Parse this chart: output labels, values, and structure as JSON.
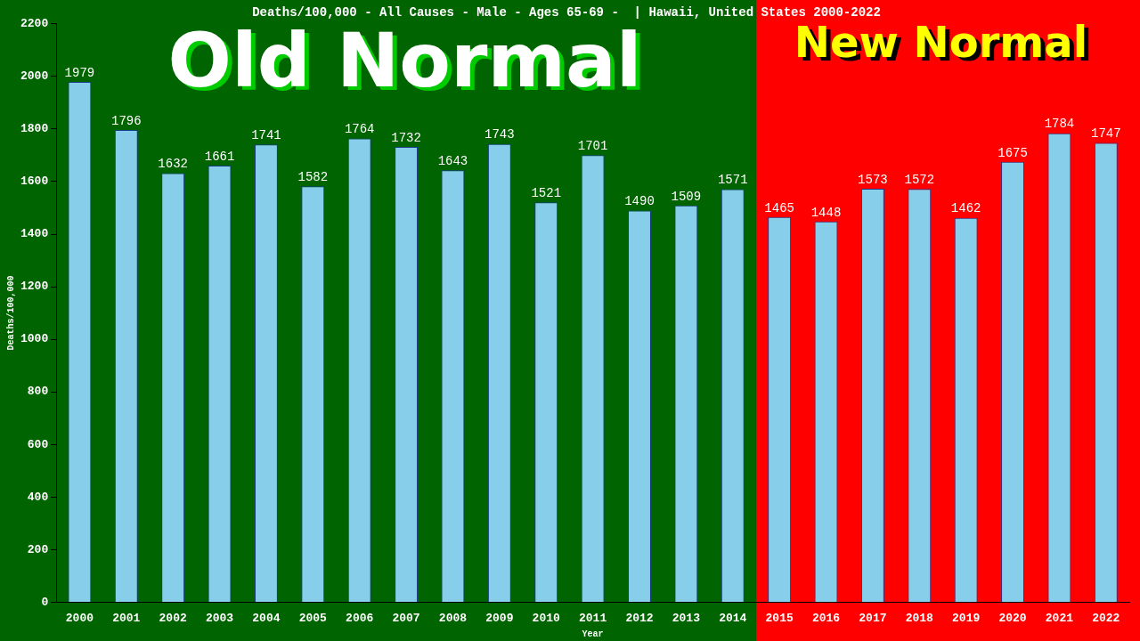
{
  "chart_data": {
    "type": "bar",
    "title": "Deaths/100,000 - All Causes - Male - Ages 65-69 -  | Hawaii, United States 2000-2022",
    "xlabel": "Year",
    "ylabel": "Deaths/100,000",
    "categories": [
      "2000",
      "2001",
      "2002",
      "2003",
      "2004",
      "2005",
      "2006",
      "2007",
      "2008",
      "2009",
      "2010",
      "2011",
      "2012",
      "2013",
      "2014",
      "2015",
      "2016",
      "2017",
      "2018",
      "2019",
      "2020",
      "2021",
      "2022"
    ],
    "values": [
      1979,
      1796,
      1632,
      1661,
      1741,
      1582,
      1764,
      1732,
      1643,
      1743,
      1521,
      1701,
      1490,
      1509,
      1571,
      1465,
      1448,
      1573,
      1572,
      1462,
      1675,
      1784,
      1747
    ],
    "color": "#87ceeb",
    "ylim": [
      0,
      2200
    ],
    "yticks": [
      0,
      200,
      400,
      600,
      800,
      1000,
      1200,
      1400,
      1600,
      1800,
      2000,
      2200
    ],
    "data_labels": true,
    "legend": false,
    "grid": false,
    "bands": [
      {
        "axis": "x",
        "from": "2000",
        "to": "2014",
        "label": "Old Normal",
        "color": "#006400"
      },
      {
        "axis": "x",
        "from": "2015",
        "to": "2022",
        "label": "New Normal",
        "color": "#ff0000"
      }
    ]
  }
}
